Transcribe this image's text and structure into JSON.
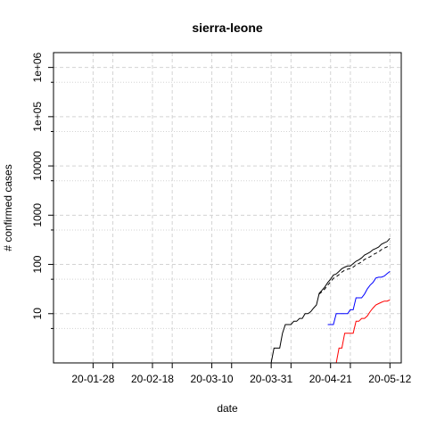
{
  "chart_data": {
    "type": "line",
    "title": "sierra-leone",
    "xlabel": "date",
    "ylabel": "# confirmed cases",
    "y_scale": "log",
    "ylim": [
      1,
      2000000
    ],
    "xlim": [
      "2020-01-14",
      "2020-05-16"
    ],
    "grid": true,
    "x_ticks": [
      {
        "date": "2020-01-28",
        "label": "20-01-28"
      },
      {
        "date": "2020-02-18",
        "label": "20-02-18"
      },
      {
        "date": "2020-03-10",
        "label": "20-03-10"
      },
      {
        "date": "2020-03-31",
        "label": "20-03-31"
      },
      {
        "date": "2020-04-21",
        "label": "20-04-21"
      },
      {
        "date": "2020-05-12",
        "label": "20-05-12"
      }
    ],
    "x_minor_dates": [
      "2020-02-04",
      "2020-02-25",
      "2020-03-17",
      "2020-04-07",
      "2020-04-28"
    ],
    "y_ticks": [
      {
        "value": 10,
        "label": "10"
      },
      {
        "value": 100,
        "label": "100"
      },
      {
        "value": 1000,
        "label": "1000"
      },
      {
        "value": 10000,
        "label": "10000"
      },
      {
        "value": 100000,
        "label": "1e+05"
      },
      {
        "value": 1000000,
        "label": "1e+06"
      }
    ],
    "y_minor": [
      5,
      50,
      500,
      5000,
      50000,
      500000
    ],
    "series": [
      {
        "color": "#000000",
        "dash": "solid",
        "points": [
          [
            "2020-03-31",
            1
          ],
          [
            "2020-04-01",
            2
          ],
          [
            "2020-04-02",
            2
          ],
          [
            "2020-04-03",
            2
          ],
          [
            "2020-04-04",
            4
          ],
          [
            "2020-04-05",
            6
          ],
          [
            "2020-04-06",
            6
          ],
          [
            "2020-04-07",
            6
          ],
          [
            "2020-04-08",
            7
          ],
          [
            "2020-04-09",
            7
          ],
          [
            "2020-04-10",
            8
          ],
          [
            "2020-04-11",
            8
          ],
          [
            "2020-04-12",
            10
          ],
          [
            "2020-04-13",
            10
          ],
          [
            "2020-04-14",
            11
          ],
          [
            "2020-04-15",
            13
          ],
          [
            "2020-04-16",
            15
          ],
          [
            "2020-04-17",
            26
          ],
          [
            "2020-04-18",
            30
          ],
          [
            "2020-04-19",
            35
          ],
          [
            "2020-04-20",
            43
          ],
          [
            "2020-04-21",
            50
          ],
          [
            "2020-04-22",
            61
          ],
          [
            "2020-04-23",
            64
          ],
          [
            "2020-04-24",
            72
          ],
          [
            "2020-04-25",
            82
          ],
          [
            "2020-04-26",
            88
          ],
          [
            "2020-04-27",
            93
          ],
          [
            "2020-04-28",
            93
          ],
          [
            "2020-04-29",
            104
          ],
          [
            "2020-04-30",
            116
          ],
          [
            "2020-05-01",
            124
          ],
          [
            "2020-05-02",
            136
          ],
          [
            "2020-05-03",
            155
          ],
          [
            "2020-05-04",
            166
          ],
          [
            "2020-05-05",
            178
          ],
          [
            "2020-05-06",
            199
          ],
          [
            "2020-05-07",
            210
          ],
          [
            "2020-05-08",
            225
          ],
          [
            "2020-05-09",
            257
          ],
          [
            "2020-05-10",
            275
          ],
          [
            "2020-05-11",
            291
          ],
          [
            "2020-05-12",
            338
          ]
        ]
      },
      {
        "color": "#000000",
        "dash": "dashed",
        "points": [
          [
            "2020-04-17",
            25
          ],
          [
            "2020-04-18",
            28
          ],
          [
            "2020-04-19",
            32
          ],
          [
            "2020-04-20",
            38
          ],
          [
            "2020-04-21",
            44
          ],
          [
            "2020-04-22",
            52
          ],
          [
            "2020-04-23",
            56
          ],
          [
            "2020-04-24",
            62
          ],
          [
            "2020-04-25",
            70
          ],
          [
            "2020-04-26",
            76
          ],
          [
            "2020-04-27",
            80
          ],
          [
            "2020-04-28",
            82
          ],
          [
            "2020-04-29",
            88
          ],
          [
            "2020-04-30",
            98
          ],
          [
            "2020-05-01",
            104
          ],
          [
            "2020-05-02",
            113
          ],
          [
            "2020-05-03",
            126
          ],
          [
            "2020-05-04",
            135
          ],
          [
            "2020-05-05",
            143
          ],
          [
            "2020-05-06",
            158
          ],
          [
            "2020-05-07",
            168
          ],
          [
            "2020-05-08",
            178
          ],
          [
            "2020-05-09",
            200
          ],
          [
            "2020-05-10",
            215
          ],
          [
            "2020-05-11",
            228
          ],
          [
            "2020-05-12",
            255
          ]
        ]
      },
      {
        "color": "#0000ff",
        "dash": "solid",
        "points": [
          [
            "2020-04-20",
            6
          ],
          [
            "2020-04-21",
            6
          ],
          [
            "2020-04-22",
            6
          ],
          [
            "2020-04-23",
            10
          ],
          [
            "2020-04-24",
            10
          ],
          [
            "2020-04-25",
            10
          ],
          [
            "2020-04-26",
            10
          ],
          [
            "2020-04-27",
            10
          ],
          [
            "2020-04-28",
            12
          ],
          [
            "2020-04-29",
            12
          ],
          [
            "2020-04-30",
            21
          ],
          [
            "2020-05-01",
            21
          ],
          [
            "2020-05-02",
            21
          ],
          [
            "2020-05-03",
            25
          ],
          [
            "2020-05-04",
            32
          ],
          [
            "2020-05-05",
            38
          ],
          [
            "2020-05-06",
            43
          ],
          [
            "2020-05-07",
            53
          ],
          [
            "2020-05-08",
            55
          ],
          [
            "2020-05-09",
            55
          ],
          [
            "2020-05-10",
            58
          ],
          [
            "2020-05-11",
            65
          ],
          [
            "2020-05-12",
            72
          ]
        ]
      },
      {
        "color": "#ff0000",
        "dash": "solid",
        "points": [
          [
            "2020-04-23",
            1
          ],
          [
            "2020-04-24",
            2
          ],
          [
            "2020-04-25",
            2
          ],
          [
            "2020-04-26",
            4
          ],
          [
            "2020-04-27",
            4
          ],
          [
            "2020-04-28",
            4
          ],
          [
            "2020-04-29",
            4
          ],
          [
            "2020-04-30",
            7
          ],
          [
            "2020-05-01",
            7
          ],
          [
            "2020-05-02",
            8
          ],
          [
            "2020-05-03",
            8
          ],
          [
            "2020-05-04",
            9
          ],
          [
            "2020-05-05",
            11
          ],
          [
            "2020-05-06",
            13
          ],
          [
            "2020-05-07",
            15
          ],
          [
            "2020-05-08",
            16
          ],
          [
            "2020-05-09",
            17
          ],
          [
            "2020-05-10",
            18
          ],
          [
            "2020-05-11",
            18
          ],
          [
            "2020-05-12",
            19
          ]
        ]
      }
    ]
  }
}
